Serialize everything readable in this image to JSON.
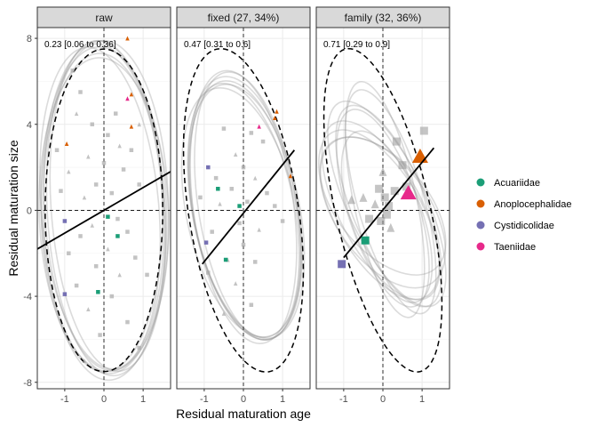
{
  "chart_data": {
    "type": "scatter",
    "xlabel": "Residual maturation age",
    "ylabel": "Residual maturation size",
    "xlim": [
      -1.7,
      1.7
    ],
    "ylim": [
      -8.3,
      8.5
    ],
    "x_ticks": [
      -1,
      0,
      1
    ],
    "y_ticks": [
      -8,
      -4,
      0,
      4,
      8
    ],
    "grid": true,
    "legend_position": "right",
    "legend": [
      {
        "label": "Acuariidae",
        "color": "#1B9E77"
      },
      {
        "label": "Anoplocephalidae",
        "color": "#D95F02"
      },
      {
        "label": "Cystidicolidae",
        "color": "#7570B3"
      },
      {
        "label": "Taeniidae",
        "color": "#E7298A"
      }
    ],
    "panels": [
      {
        "title": "raw",
        "annotation": "0.23 [0.06 to 0.36]",
        "regression": {
          "x": [
            -1.7,
            1.7
          ],
          "y": [
            -1.8,
            1.8
          ]
        },
        "dashed_ellipse": {
          "cx": 0,
          "cy": 0,
          "rx": 1.5,
          "ry": 7.5,
          "angle": 0
        },
        "grey_ellipses": [
          {
            "cx": 0.0,
            "cy": 0.0,
            "rx": 1.6,
            "ry": 7.6,
            "angle": -2
          },
          {
            "cx": 0.05,
            "cy": 0.1,
            "rx": 1.5,
            "ry": 7.8,
            "angle": -3
          },
          {
            "cx": -0.05,
            "cy": -0.1,
            "rx": 1.55,
            "ry": 7.4,
            "angle": -1
          },
          {
            "cx": 0.1,
            "cy": 0.2,
            "rx": 1.45,
            "ry": 7.7,
            "angle": -4
          },
          {
            "cx": 0.0,
            "cy": -0.2,
            "rx": 1.65,
            "ry": 7.3,
            "angle": -2
          },
          {
            "cx": -0.1,
            "cy": 0.1,
            "rx": 1.5,
            "ry": 7.5,
            "angle": -5
          },
          {
            "cx": 0.05,
            "cy": 0.0,
            "rx": 1.6,
            "ry": 7.9,
            "angle": -1
          },
          {
            "cx": 0.0,
            "cy": 0.15,
            "rx": 1.52,
            "ry": 7.6,
            "angle": -3
          }
        ],
        "grey_points": [
          {
            "x": -0.8,
            "y": 6.5,
            "s": "sq"
          },
          {
            "x": -0.6,
            "y": 5.5,
            "s": "sq"
          },
          {
            "x": -0.7,
            "y": 4.5,
            "s": "tri"
          },
          {
            "x": -0.3,
            "y": 4.0,
            "s": "sq"
          },
          {
            "x": 0.1,
            "y": 3.5,
            "s": "sq"
          },
          {
            "x": 0.3,
            "y": 4.5,
            "s": "sq"
          },
          {
            "x": 0.4,
            "y": 3.0,
            "s": "tri"
          },
          {
            "x": -0.4,
            "y": 2.5,
            "s": "tri"
          },
          {
            "x": 0.0,
            "y": 2.2,
            "s": "sq"
          },
          {
            "x": -0.9,
            "y": 1.8,
            "s": "tri"
          },
          {
            "x": 0.5,
            "y": 1.9,
            "s": "sq"
          },
          {
            "x": 0.7,
            "y": 2.8,
            "s": "sq"
          },
          {
            "x": -0.2,
            "y": 1.2,
            "s": "sq"
          },
          {
            "x": 0.2,
            "y": 0.8,
            "s": "sq"
          },
          {
            "x": -0.5,
            "y": 0.6,
            "s": "tri"
          },
          {
            "x": 0.9,
            "y": 1.2,
            "s": "sq"
          },
          {
            "x": -1.1,
            "y": 0.9,
            "s": "sq"
          },
          {
            "x": 0.35,
            "y": -0.4,
            "s": "sq"
          },
          {
            "x": -0.3,
            "y": -0.7,
            "s": "tri"
          },
          {
            "x": -0.6,
            "y": -1.2,
            "s": "sq"
          },
          {
            "x": 0.6,
            "y": -1.0,
            "s": "sq"
          },
          {
            "x": 0.1,
            "y": -1.8,
            "s": "tri"
          },
          {
            "x": -0.9,
            "y": -2.0,
            "s": "sq"
          },
          {
            "x": 0.8,
            "y": -2.2,
            "s": "sq"
          },
          {
            "x": -0.2,
            "y": -2.6,
            "s": "sq"
          },
          {
            "x": 0.4,
            "y": -3.0,
            "s": "tri"
          },
          {
            "x": -0.7,
            "y": -3.5,
            "s": "sq"
          },
          {
            "x": 0.2,
            "y": -4.0,
            "s": "sq"
          },
          {
            "x": -0.4,
            "y": -4.6,
            "s": "tri"
          },
          {
            "x": 0.6,
            "y": -5.2,
            "s": "sq"
          },
          {
            "x": -0.1,
            "y": -5.8,
            "s": "sq"
          },
          {
            "x": 0.9,
            "y": -6.4,
            "s": "sq"
          },
          {
            "x": -0.5,
            "y": -7.0,
            "s": "tri"
          },
          {
            "x": 1.1,
            "y": -3.0,
            "s": "sq"
          },
          {
            "x": -1.2,
            "y": 2.8,
            "s": "sq"
          },
          {
            "x": 0.9,
            "y": 4.0,
            "s": "tri"
          }
        ],
        "family_points": [
          {
            "family": "Anoplocephalidae",
            "x": 0.6,
            "y": 8.0,
            "s": "tri"
          },
          {
            "family": "Anoplocephalidae",
            "x": 0.7,
            "y": 5.4,
            "s": "tri"
          },
          {
            "family": "Anoplocephalidae",
            "x": 0.7,
            "y": 3.9,
            "s": "tri"
          },
          {
            "family": "Anoplocephalidae",
            "x": -0.95,
            "y": 3.1,
            "s": "tri"
          },
          {
            "family": "Taeniidae",
            "x": 0.6,
            "y": 5.2,
            "s": "tri"
          },
          {
            "family": "Acuariidae",
            "x": 0.1,
            "y": -0.3,
            "s": "sq"
          },
          {
            "family": "Acuariidae",
            "x": 0.35,
            "y": -1.2,
            "s": "sq"
          },
          {
            "family": "Acuariidae",
            "x": -0.15,
            "y": -3.8,
            "s": "sq"
          },
          {
            "family": "Cystidicolidae",
            "x": -1.0,
            "y": -0.5,
            "s": "sq"
          },
          {
            "family": "Cystidicolidae",
            "x": -1.0,
            "y": -3.9,
            "s": "sq"
          }
        ]
      },
      {
        "title": "fixed (27, 34%)",
        "annotation": "0.47 [0.31 to 0.6]",
        "regression": {
          "x": [
            -1.05,
            1.3
          ],
          "y": [
            -2.5,
            2.8
          ]
        },
        "dashed_ellipse": {
          "cx": 0,
          "cy": 0,
          "rx": 1.4,
          "ry": 7.6,
          "angle": -9
        },
        "grey_ellipses": [
          {
            "cx": 0.05,
            "cy": 0.1,
            "rx": 1.35,
            "ry": 6.2,
            "angle": -10
          },
          {
            "cx": 0.0,
            "cy": 0.0,
            "rx": 1.3,
            "ry": 6.0,
            "angle": -11
          },
          {
            "cx": 0.1,
            "cy": 0.2,
            "rx": 1.25,
            "ry": 6.3,
            "angle": -9
          },
          {
            "cx": -0.05,
            "cy": -0.1,
            "rx": 1.4,
            "ry": 5.9,
            "angle": -12
          },
          {
            "cx": 0.05,
            "cy": 0.0,
            "rx": 1.32,
            "ry": 6.1,
            "angle": -10
          },
          {
            "cx": 0.0,
            "cy": 0.15,
            "rx": 1.28,
            "ry": 6.4,
            "angle": -8
          },
          {
            "cx": 0.08,
            "cy": -0.05,
            "rx": 1.36,
            "ry": 6.0,
            "angle": -11
          }
        ],
        "grey_points": [
          {
            "x": -0.5,
            "y": 3.8,
            "s": "sq"
          },
          {
            "x": 0.2,
            "y": 3.6,
            "s": "sq"
          },
          {
            "x": 0.5,
            "y": 3.2,
            "s": "sq"
          },
          {
            "x": -0.2,
            "y": 2.6,
            "s": "tri"
          },
          {
            "x": 0.0,
            "y": 2.0,
            "s": "sq"
          },
          {
            "x": -0.7,
            "y": 1.5,
            "s": "sq"
          },
          {
            "x": 0.3,
            "y": 1.5,
            "s": "tri"
          },
          {
            "x": -0.3,
            "y": 1.0,
            "s": "sq"
          },
          {
            "x": 0.6,
            "y": 0.8,
            "s": "sq"
          },
          {
            "x": -0.6,
            "y": 0.3,
            "s": "tri"
          },
          {
            "x": 0.1,
            "y": 0.4,
            "s": "sq"
          },
          {
            "x": -0.1,
            "y": -0.6,
            "s": "sq"
          },
          {
            "x": 0.4,
            "y": -0.9,
            "s": "tri"
          },
          {
            "x": -0.8,
            "y": -1.0,
            "s": "sq"
          },
          {
            "x": 0.0,
            "y": -1.6,
            "s": "sq"
          },
          {
            "x": -0.4,
            "y": -2.3,
            "s": "tri"
          },
          {
            "x": 0.3,
            "y": -2.4,
            "s": "sq"
          },
          {
            "x": -0.9,
            "y": -2.9,
            "s": "sq"
          },
          {
            "x": -0.2,
            "y": -3.4,
            "s": "tri"
          },
          {
            "x": 0.2,
            "y": -4.4,
            "s": "sq"
          },
          {
            "x": -0.5,
            "y": -4.8,
            "s": "tri"
          },
          {
            "x": 0.8,
            "y": 0.2,
            "s": "sq"
          },
          {
            "x": -1.1,
            "y": 0.6,
            "s": "sq"
          },
          {
            "x": 1.0,
            "y": -0.5,
            "s": "sq"
          }
        ],
        "family_points": [
          {
            "family": "Anoplocephalidae",
            "x": 0.85,
            "y": 4.6,
            "s": "tri"
          },
          {
            "family": "Anoplocephalidae",
            "x": 0.8,
            "y": 4.3,
            "s": "tri"
          },
          {
            "family": "Anoplocephalidae",
            "x": 1.2,
            "y": 1.6,
            "s": "tri"
          },
          {
            "family": "Taeniidae",
            "x": 0.4,
            "y": 3.9,
            "s": "tri"
          },
          {
            "family": "Acuariidae",
            "x": -0.65,
            "y": 1.0,
            "s": "sq"
          },
          {
            "family": "Acuariidae",
            "x": -0.1,
            "y": 0.2,
            "s": "sq"
          },
          {
            "family": "Acuariidae",
            "x": -0.45,
            "y": -2.3,
            "s": "sq"
          },
          {
            "family": "Cystidicolidae",
            "x": -0.9,
            "y": 2.0,
            "s": "sq"
          },
          {
            "family": "Cystidicolidae",
            "x": -0.95,
            "y": -1.5,
            "s": "sq"
          }
        ]
      },
      {
        "title": "family (32, 36%)",
        "annotation": "0.71 [0.29 to 0.9]",
        "regression": {
          "x": [
            -1.0,
            1.3
          ],
          "y": [
            -2.2,
            2.9
          ]
        },
        "dashed_ellipse": {
          "cx": 0,
          "cy": 0,
          "rx": 1.2,
          "ry": 7.7,
          "angle": -13
        },
        "grey_ellipses": [
          {
            "cx": 0.0,
            "cy": 0.1,
            "rx": 0.9,
            "ry": 4.8,
            "angle": -18
          },
          {
            "cx": 0.1,
            "cy": 0.3,
            "rx": 1.0,
            "ry": 5.2,
            "angle": -25
          },
          {
            "cx": -0.1,
            "cy": -0.2,
            "rx": 1.1,
            "ry": 4.4,
            "angle": -30
          },
          {
            "cx": 0.05,
            "cy": 0.5,
            "rx": 0.8,
            "ry": 5.6,
            "angle": -12
          },
          {
            "cx": 0.0,
            "cy": -0.1,
            "rx": 1.2,
            "ry": 4.0,
            "angle": -35
          },
          {
            "cx": 0.15,
            "cy": 0.2,
            "rx": 0.95,
            "ry": 5.0,
            "angle": -22
          },
          {
            "cx": -0.05,
            "cy": 0.0,
            "rx": 1.05,
            "ry": 4.6,
            "angle": -28
          },
          {
            "cx": 0.2,
            "cy": 0.4,
            "rx": 0.85,
            "ry": 5.4,
            "angle": -16
          },
          {
            "cx": 0.0,
            "cy": 0.2,
            "rx": 1.15,
            "ry": 3.8,
            "angle": -40
          },
          {
            "cx": 0.1,
            "cy": -0.3,
            "rx": 0.9,
            "ry": 4.2,
            "angle": -20
          }
        ],
        "grey_points": [
          {
            "x": 1.05,
            "y": 3.7,
            "s": "sq",
            "big": true
          },
          {
            "x": 0.35,
            "y": 3.2,
            "s": "sq",
            "big": true
          },
          {
            "x": 0.5,
            "y": 2.1,
            "s": "sq",
            "big": true
          },
          {
            "x": 0.0,
            "y": 1.8,
            "s": "tri",
            "big": true
          },
          {
            "x": -0.1,
            "y": 1.0,
            "s": "sq",
            "big": true
          },
          {
            "x": 0.05,
            "y": 0.6,
            "s": "sq",
            "big": true
          },
          {
            "x": -0.2,
            "y": 0.3,
            "s": "tri",
            "big": true
          },
          {
            "x": 0.1,
            "y": -0.2,
            "s": "sq",
            "big": true
          },
          {
            "x": -0.05,
            "y": -0.5,
            "s": "sq",
            "big": true
          },
          {
            "x": 0.2,
            "y": -0.8,
            "s": "tri",
            "big": true
          },
          {
            "x": -0.5,
            "y": 0.6,
            "s": "tri",
            "big": true
          },
          {
            "x": 0.3,
            "y": 0.9,
            "s": "sq",
            "big": true
          },
          {
            "x": -0.35,
            "y": -0.4,
            "s": "sq",
            "big": true
          },
          {
            "x": 0.15,
            "y": 0.2,
            "s": "sq",
            "big": true
          },
          {
            "x": -0.8,
            "y": 0.5,
            "s": "tri",
            "big": true
          },
          {
            "x": 0.6,
            "y": 1.1,
            "s": "sq",
            "big": true
          }
        ],
        "family_points": [
          {
            "family": "Anoplocephalidae",
            "x": 0.95,
            "y": 2.5,
            "s": "tri",
            "big": true
          },
          {
            "family": "Taeniidae",
            "x": 0.65,
            "y": 0.8,
            "s": "tri",
            "big": true
          },
          {
            "family": "Acuariidae",
            "x": -0.45,
            "y": -1.4,
            "s": "sq",
            "big": true
          },
          {
            "family": "Cystidicolidae",
            "x": -1.05,
            "y": -2.5,
            "s": "sq",
            "big": true
          }
        ]
      }
    ]
  }
}
